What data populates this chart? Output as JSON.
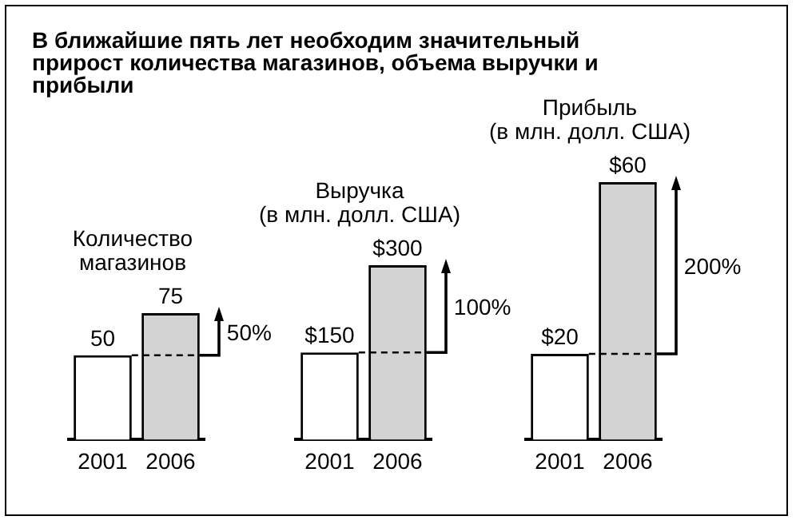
{
  "chart_data": [
    {
      "type": "bar",
      "title": "В ближайшие пять лет необходим значительный прирост количества магазинов, объема выручки и прибыли",
      "subtitle": "Количество\nмагазинов",
      "categories": [
        "2001",
        "2006"
      ],
      "values": [
        50,
        75
      ],
      "colors": [
        "#ffffff",
        "#d3d3d3"
      ],
      "data_labels": true,
      "ref_lines": [
        {
          "axis": "y",
          "value": 50,
          "line_style": "dashed"
        }
      ],
      "annotations": [
        "50%"
      ]
    },
    {
      "type": "bar",
      "subtitle": "Выручка\n(в млн. долл. США)",
      "categories": [
        "2001",
        "2006"
      ],
      "values": [
        150,
        300
      ],
      "colors": [
        "#ffffff",
        "#d3d3d3"
      ],
      "value_labels": [
        "$150",
        "$300"
      ],
      "ref_lines": [
        {
          "axis": "y",
          "value": 150,
          "line_style": "dashed"
        }
      ],
      "annotations": [
        "100%"
      ]
    },
    {
      "type": "bar",
      "subtitle": "Прибыль\n(в млн. долл. США)",
      "categories": [
        "2001",
        "2006"
      ],
      "values": [
        20,
        60
      ],
      "colors": [
        "#ffffff",
        "#d3d3d3"
      ],
      "value_labels": [
        "$20",
        "$60"
      ],
      "ref_lines": [
        {
          "axis": "y",
          "value": 20,
          "line_style": "dashed"
        }
      ],
      "annotations": [
        "200%"
      ]
    }
  ]
}
